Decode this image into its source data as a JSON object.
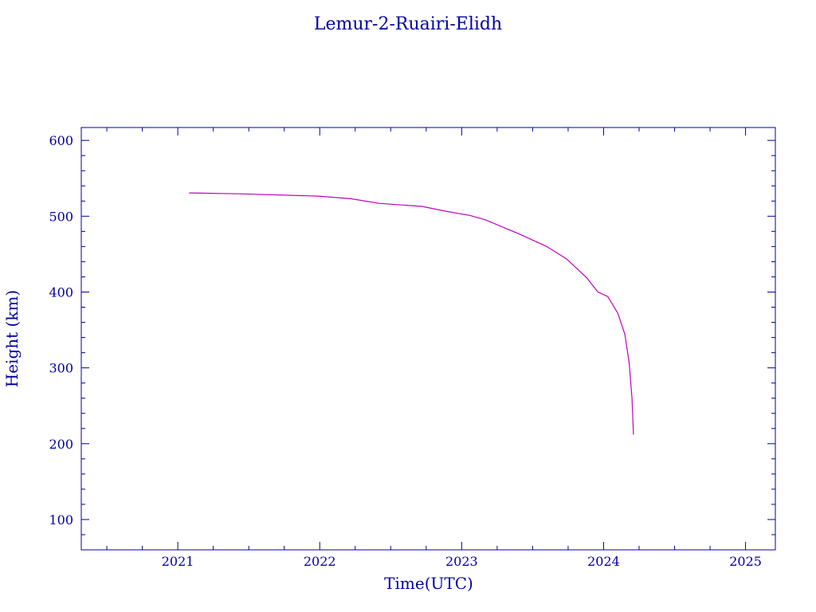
{
  "chart_data": {
    "type": "line",
    "title": "Lemur-2-Ruairi-Elidh",
    "xlabel": "Time(UTC)",
    "ylabel": "Height (km)",
    "xlim": [
      2020.32,
      2025.21
    ],
    "ylim": [
      60,
      617
    ],
    "xticks": [
      2021,
      2022,
      2023,
      2024,
      2025
    ],
    "yticks": [
      100,
      200,
      300,
      400,
      500,
      600
    ],
    "grid": false,
    "colors": {
      "axis": "#0000a0",
      "line": "#c000c0"
    },
    "series": [
      {
        "x": [
          2021.08,
          2021.43,
          2021.99,
          2022.22,
          2022.42,
          2022.72,
          2022.89,
          2023.06,
          2023.17,
          2023.4,
          2023.6,
          2023.74,
          2023.88,
          2023.96,
          2024.03,
          2024.1,
          2024.15,
          2024.18,
          2024.2,
          2024.21
        ],
        "y": [
          530.7,
          529.6,
          526.5,
          523,
          517,
          513,
          506.5,
          501,
          495,
          477,
          460,
          443.5,
          419,
          400,
          394,
          372,
          344,
          307,
          260,
          212
        ]
      }
    ]
  }
}
